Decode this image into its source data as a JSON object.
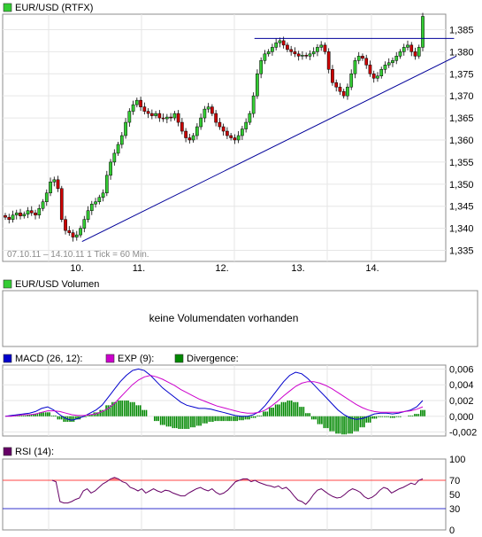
{
  "header": {
    "label": "EUR/USD (RTFX)",
    "color": "#33cc33"
  },
  "price_panel": {
    "range_note": "07.10.11 – 14.10.11   1 Tick = 60 Min.",
    "y_ticks": [
      "1,385",
      "1,380",
      "1,375",
      "1,370",
      "1,365",
      "1,360",
      "1,355",
      "1,350",
      "1,345",
      "1,340",
      "1,335"
    ],
    "x_ticks": [
      "10.",
      "11.",
      "12.",
      "13.",
      "14."
    ],
    "up_color": "#33cc33",
    "down_color": "#cc0000",
    "trendline_color": "#000099"
  },
  "volume_panel": {
    "label": "EUR/USD Volumen",
    "message": "keine Volumendaten vorhanden",
    "color": "#33cc33"
  },
  "macd_panel": {
    "legend": [
      {
        "label": "MACD (26, 12):",
        "color": "#0000cc"
      },
      {
        "label": "EXP (9):",
        "color": "#cc00cc"
      },
      {
        "label": "Divergence:",
        "color": "#008800"
      }
    ],
    "y_ticks": [
      "0,006",
      "0,004",
      "0,002",
      "0,000",
      "-0,002"
    ]
  },
  "rsi_panel": {
    "label": "RSI (14):",
    "color": "#660066",
    "y_ticks": [
      "100",
      "70",
      "50",
      "30",
      "0"
    ]
  },
  "chart_data": [
    {
      "type": "candlestick",
      "ylim": [
        1.3325,
        1.3885
      ],
      "y_ticks": [
        1.335,
        1.34,
        1.345,
        1.35,
        1.355,
        1.36,
        1.365,
        1.37,
        1.375,
        1.38,
        1.385
      ],
      "x_ticks": [
        "10.",
        "11.",
        "12.",
        "13.",
        "14."
      ],
      "close_series": [
        1.3425,
        1.342,
        1.343,
        1.3435,
        1.3428,
        1.3432,
        1.344,
        1.3435,
        1.343,
        1.3445,
        1.346,
        1.348,
        1.3505,
        1.351,
        1.349,
        1.342,
        1.3395,
        1.339,
        1.338,
        1.3385,
        1.34,
        1.342,
        1.344,
        1.3455,
        1.346,
        1.347,
        1.348,
        1.352,
        1.355,
        1.357,
        1.359,
        1.361,
        1.364,
        1.3665,
        1.368,
        1.369,
        1.3675,
        1.3665,
        1.366,
        1.3655,
        1.366,
        1.365,
        1.3648,
        1.3652,
        1.365,
        1.366,
        1.364,
        1.362,
        1.3605,
        1.36,
        1.361,
        1.363,
        1.365,
        1.367,
        1.3675,
        1.366,
        1.364,
        1.363,
        1.362,
        1.361,
        1.3605,
        1.36,
        1.361,
        1.3625,
        1.364,
        1.366,
        1.37,
        1.375,
        1.378,
        1.3795,
        1.38,
        1.381,
        1.382,
        1.3825,
        1.3815,
        1.3805,
        1.38,
        1.3795,
        1.379,
        1.3792,
        1.379,
        1.3795,
        1.38,
        1.381,
        1.3815,
        1.38,
        1.376,
        1.373,
        1.372,
        1.371,
        1.37,
        1.372,
        1.375,
        1.378,
        1.379,
        1.3785,
        1.377,
        1.375,
        1.374,
        1.3745,
        1.376,
        1.377,
        1.3775,
        1.378,
        1.379,
        1.38,
        1.381,
        1.3815,
        1.38,
        1.379,
        1.381,
        1.388
      ],
      "trendlines": [
        {
          "from": [
            0.175,
            1.337
          ],
          "to": [
            1.0,
            1.379
          ]
        },
        {
          "from": [
            0.555,
            1.383
          ],
          "to": [
            0.995,
            1.383
          ]
        }
      ]
    },
    {
      "type": "line",
      "series": [
        {
          "name": "MACD (26, 12)",
          "values": [
            0.0,
            0.0001,
            0.0002,
            0.0003,
            0.0004,
            0.0006,
            0.001,
            0.0012,
            0.0008,
            0.0002,
            -0.0003,
            -0.0005,
            -0.0003,
            0.0,
            0.0004,
            0.0008,
            0.0014,
            0.0024,
            0.0034,
            0.0044,
            0.0052,
            0.0058,
            0.006,
            0.0058,
            0.0052,
            0.0044,
            0.0036,
            0.003,
            0.0024,
            0.0018,
            0.0014,
            0.0012,
            0.001,
            0.001,
            0.0009,
            0.0007,
            0.0005,
            0.0003,
            0.0001,
            0.0,
            0.0,
            0.0002,
            0.0006,
            0.0014,
            0.0024,
            0.0034,
            0.0044,
            0.0052,
            0.0056,
            0.0054,
            0.0048,
            0.004,
            0.0032,
            0.0024,
            0.0016,
            0.0008,
            0.0002,
            -0.0002,
            -0.0004,
            -0.0003,
            0.0,
            0.0003,
            0.0004,
            0.0004,
            0.0003,
            0.0004,
            0.0006,
            0.0008,
            0.0012,
            0.002
          ]
        },
        {
          "name": "EXP (9)",
          "values": [
            0.0,
            0.0,
            0.0001,
            0.0002,
            0.0002,
            0.0003,
            0.0005,
            0.0007,
            0.0007,
            0.0006,
            0.0004,
            0.0002,
            0.0001,
            0.0001,
            0.0002,
            0.0003,
            0.0006,
            0.001,
            0.0016,
            0.0024,
            0.0032,
            0.004,
            0.0046,
            0.005,
            0.0052,
            0.005,
            0.0047,
            0.0043,
            0.0039,
            0.0034,
            0.003,
            0.0026,
            0.0022,
            0.0019,
            0.0016,
            0.0013,
            0.0011,
            0.0009,
            0.0007,
            0.0005,
            0.0004,
            0.0004,
            0.0005,
            0.0008,
            0.0013,
            0.0019,
            0.0026,
            0.0032,
            0.0038,
            0.0042,
            0.0044,
            0.0044,
            0.0042,
            0.0039,
            0.0035,
            0.003,
            0.0025,
            0.002,
            0.0015,
            0.0011,
            0.0008,
            0.0006,
            0.0005,
            0.0005,
            0.0005,
            0.0005,
            0.0006,
            0.0007,
            0.0009,
            0.0012
          ]
        },
        {
          "name": "Divergence",
          "values": [
            0.0,
            0.0001,
            0.0001,
            0.0001,
            0.0002,
            0.0003,
            0.0005,
            0.0005,
            0.0001,
            -0.0004,
            -0.0007,
            -0.0007,
            -0.0004,
            -0.0001,
            0.0002,
            0.0005,
            0.0008,
            0.0014,
            0.0018,
            0.002,
            0.002,
            0.0018,
            0.0014,
            0.0008,
            0.0,
            -0.0006,
            -0.0011,
            -0.0013,
            -0.0015,
            -0.0016,
            -0.0016,
            -0.0014,
            -0.0012,
            -0.0009,
            -0.0007,
            -0.0006,
            -0.0006,
            -0.0006,
            -0.0006,
            -0.0005,
            -0.0004,
            -0.0002,
            0.0001,
            0.0006,
            0.0011,
            0.0015,
            0.0018,
            0.002,
            0.0018,
            0.0012,
            0.0004,
            -0.0004,
            -0.001,
            -0.0015,
            -0.0019,
            -0.0022,
            -0.0023,
            -0.0022,
            -0.0019,
            -0.0014,
            -0.0008,
            -0.0003,
            -0.0001,
            -0.0001,
            -0.0002,
            -0.0001,
            0.0,
            0.0001,
            0.0003,
            0.0008
          ]
        }
      ],
      "ylim": [
        -0.0025,
        0.0065
      ],
      "y_ticks": [
        -0.002,
        0.0,
        0.002,
        0.004,
        0.006
      ]
    },
    {
      "type": "line",
      "series": [
        {
          "name": "RSI (14)",
          "values": [
            null,
            null,
            null,
            null,
            null,
            null,
            null,
            null,
            null,
            null,
            null,
            null,
            70,
            68,
            40,
            38,
            38,
            40,
            43,
            45,
            55,
            58,
            52,
            55,
            60,
            65,
            68,
            72,
            74,
            72,
            68,
            66,
            60,
            58,
            55,
            58,
            52,
            55,
            58,
            55,
            53,
            56,
            55,
            52,
            50,
            48,
            48,
            52,
            55,
            58,
            60,
            57,
            55,
            58,
            53,
            50,
            52,
            56,
            62,
            68,
            70,
            72,
            72,
            68,
            70,
            67,
            65,
            63,
            62,
            60,
            62,
            58,
            60,
            55,
            48,
            42,
            40,
            36,
            42,
            50,
            56,
            58,
            54,
            50,
            47,
            45,
            46,
            50,
            55,
            58,
            56,
            53,
            47,
            44,
            46,
            50,
            56,
            60,
            58,
            52,
            55,
            58,
            60,
            63,
            66,
            64,
            70,
            72
          ]
        }
      ],
      "ylim": [
        0,
        100
      ],
      "y_ticks": [
        0,
        30,
        50,
        70,
        100
      ],
      "reference_lines": [
        30,
        70
      ]
    }
  ]
}
